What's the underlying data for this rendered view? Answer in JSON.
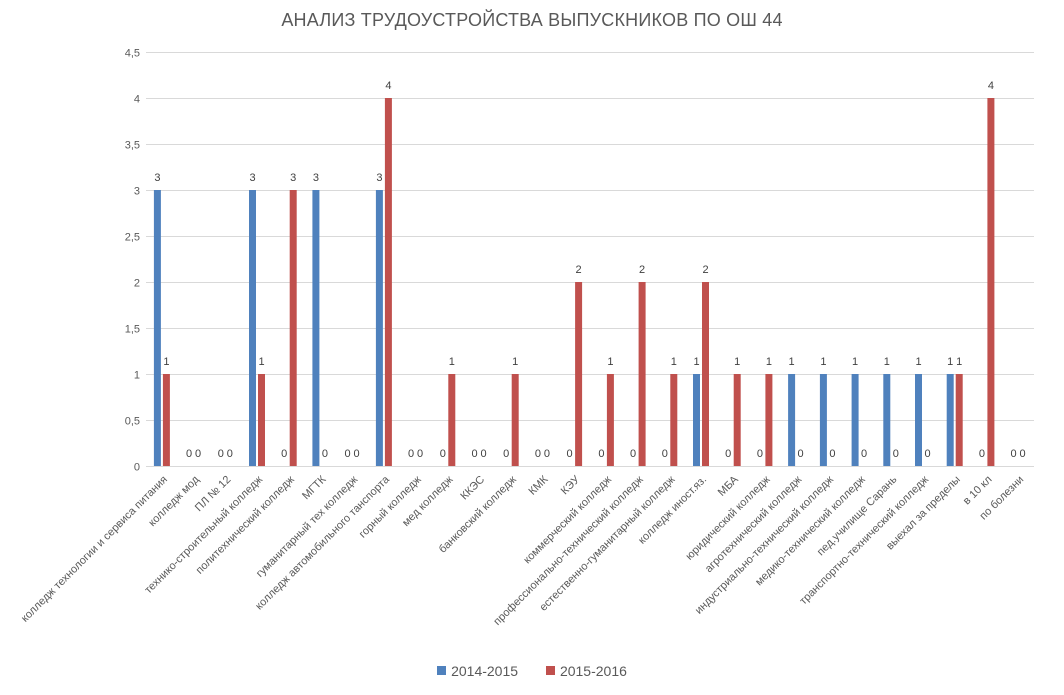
{
  "chart_data": {
    "type": "bar",
    "title": "АНАЛИЗ ТРУДОУСТРОЙСТВА ВЫПУСКНИКОВ ПО ОШ 44",
    "xlabel": "",
    "ylabel": "",
    "ylim": [
      0,
      4.5
    ],
    "yticks": [
      "0",
      "0,5",
      "1",
      "1,5",
      "2",
      "2,5",
      "3",
      "3,5",
      "4",
      "4,5"
    ],
    "ytick_values": [
      0,
      0.5,
      1,
      1.5,
      2,
      2.5,
      3,
      3.5,
      4,
      4.5
    ],
    "grid": true,
    "legend_position": "bottom",
    "categories": [
      "колледж технологии и сервиса питания",
      "колледж мод",
      "ПЛ № 12",
      "технико-строительный колледж",
      "политехнический колледж",
      "МГТК",
      "гуманитарный тех колледж",
      "колледж автомобильного тансп­орта",
      "горный колледж",
      "мед колледж",
      "ККЭС",
      "банковский колледж",
      "КМК",
      "КЭУ",
      "коммерческий колледж",
      "профессионально-технический колледж",
      "естественно-гуманитарный колледж",
      "колледж иност.яз.",
      "МБА",
      "юридический колледж",
      "агротехнический колледж",
      "индустриально-технический колледж",
      "медико-технический колледж",
      "пед.училище Сарань",
      "транспортно-технический колледж",
      "выехал за пределы",
      "в 10 кл",
      "по болезни"
    ],
    "series": [
      {
        "name": "2014-2015",
        "color": "#4f81bd",
        "values": [
          3,
          0,
          0,
          3,
          0,
          3,
          0,
          3,
          0,
          0,
          0,
          0,
          0,
          0,
          0,
          0,
          0,
          1,
          0,
          0,
          1,
          1,
          1,
          1,
          1,
          1,
          0,
          0
        ]
      },
      {
        "name": "2015-2016",
        "color": "#c0504d",
        "values": [
          1,
          0,
          0,
          1,
          3,
          0,
          0,
          4,
          0,
          1,
          0,
          1,
          0,
          2,
          1,
          2,
          1,
          2,
          1,
          1,
          0,
          0,
          0,
          0,
          0,
          1,
          4,
          0
        ]
      }
    ]
  }
}
